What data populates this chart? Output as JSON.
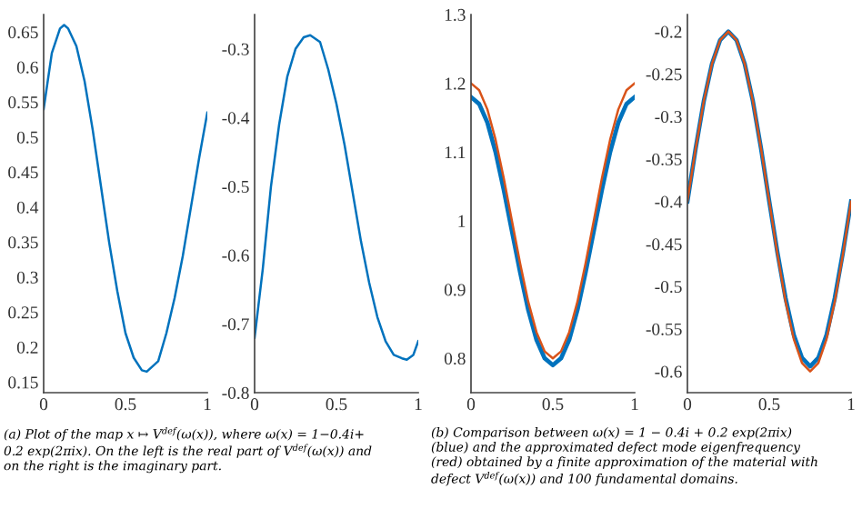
{
  "chart_data": [
    {
      "type": "line",
      "x": [
        0,
        0.05,
        0.1,
        0.125,
        0.15,
        0.2,
        0.25,
        0.3,
        0.35,
        0.4,
        0.45,
        0.5,
        0.55,
        0.6,
        0.63,
        0.7,
        0.75,
        0.8,
        0.85,
        0.9,
        0.95,
        1.0
      ],
      "series": [
        {
          "color": "#0072bd",
          "values": [
            0.54,
            0.62,
            0.655,
            0.66,
            0.655,
            0.63,
            0.58,
            0.51,
            0.43,
            0.35,
            0.28,
            0.22,
            0.185,
            0.167,
            0.165,
            0.18,
            0.22,
            0.27,
            0.33,
            0.4,
            0.47,
            0.535
          ]
        }
      ],
      "xlim": [
        0,
        1
      ],
      "xticks": [
        0,
        0.5,
        1
      ],
      "ylim": [
        0.135,
        0.675
      ],
      "yticks": [
        0.15,
        0.2,
        0.25,
        0.3,
        0.35,
        0.4,
        0.45,
        0.5,
        0.55,
        0.6,
        0.65
      ],
      "grid": false,
      "annotations": [
        "(a) Plot of the map x ↦ V$^{def}$(ω(x)), where ω(x) = 1−0.4i+\n0.2 exp(2πix). On the left is the real part of V$^{def}$(ω(x)) and\non the right is the imaginary part."
      ]
    },
    {
      "type": "line",
      "x": [
        0,
        0.05,
        0.1,
        0.15,
        0.2,
        0.25,
        0.3,
        0.34,
        0.4,
        0.45,
        0.5,
        0.55,
        0.6,
        0.65,
        0.7,
        0.75,
        0.8,
        0.85,
        0.9,
        0.93,
        0.97,
        1.0
      ],
      "series": [
        {
          "color": "#0072bd",
          "values": [
            -0.72,
            -0.62,
            -0.5,
            -0.41,
            -0.34,
            -0.3,
            -0.283,
            -0.28,
            -0.29,
            -0.33,
            -0.38,
            -0.44,
            -0.51,
            -0.58,
            -0.64,
            -0.69,
            -0.725,
            -0.745,
            -0.75,
            -0.752,
            -0.745,
            -0.725
          ]
        }
      ],
      "xlim": [
        0,
        1
      ],
      "xticks": [
        0,
        0.5,
        1
      ],
      "ylim": [
        -0.8,
        -0.25
      ],
      "yticks": [
        -0.8,
        -0.7,
        -0.6,
        -0.5,
        -0.4,
        -0.3
      ],
      "grid": false
    },
    {
      "type": "line",
      "x": [
        0,
        0.05,
        0.1,
        0.15,
        0.2,
        0.25,
        0.3,
        0.35,
        0.4,
        0.45,
        0.5,
        0.55,
        0.6,
        0.65,
        0.7,
        0.75,
        0.8,
        0.85,
        0.9,
        0.95,
        1.0
      ],
      "series": [
        {
          "color": "#0072bd",
          "values": [
            1.18,
            1.17,
            1.143,
            1.1,
            1.045,
            0.985,
            0.925,
            0.87,
            0.827,
            0.8,
            0.79,
            0.8,
            0.827,
            0.87,
            0.925,
            0.985,
            1.045,
            1.1,
            1.143,
            1.17,
            1.18
          ]
        },
        {
          "color": "#d95319",
          "values": [
            1.2,
            1.19,
            1.162,
            1.118,
            1.062,
            1.0,
            0.938,
            0.882,
            0.838,
            0.81,
            0.8,
            0.81,
            0.838,
            0.882,
            0.938,
            1.0,
            1.062,
            1.118,
            1.162,
            1.19,
            1.2
          ]
        }
      ],
      "xlim": [
        0,
        1
      ],
      "xticks": [
        0,
        0.5,
        1
      ],
      "ylim": [
        0.75,
        1.3
      ],
      "yticks": [
        0.8,
        0.9,
        1,
        1.1,
        1.2,
        1.3
      ],
      "grid": false,
      "annotations": [
        "(b) Comparison between ω(x) = 1 − 0.4i + 0.2 exp(2πix)\n(blue) and the approximated defect mode eigenfrequency\n(red) obtained by a finite approximation of the material with\ndefect V$^{def}$(ω(x)) and 100 fundamental domains."
      ]
    },
    {
      "type": "line",
      "x": [
        0,
        0.05,
        0.1,
        0.15,
        0.2,
        0.25,
        0.3,
        0.35,
        0.4,
        0.45,
        0.5,
        0.55,
        0.6,
        0.65,
        0.7,
        0.75,
        0.8,
        0.85,
        0.9,
        0.95,
        1.0
      ],
      "series": [
        {
          "color": "#0072bd",
          "values": [
            -0.4,
            -0.338,
            -0.282,
            -0.238,
            -0.21,
            -0.2,
            -0.21,
            -0.238,
            -0.282,
            -0.338,
            -0.4,
            -0.46,
            -0.514,
            -0.557,
            -0.584,
            -0.594,
            -0.584,
            -0.557,
            -0.514,
            -0.46,
            -0.4
          ]
        },
        {
          "color": "#d95319",
          "values": [
            -0.4,
            -0.338,
            -0.282,
            -0.238,
            -0.21,
            -0.2,
            -0.21,
            -0.238,
            -0.282,
            -0.338,
            -0.4,
            -0.462,
            -0.518,
            -0.562,
            -0.59,
            -0.6,
            -0.59,
            -0.562,
            -0.518,
            -0.462,
            -0.4
          ]
        }
      ],
      "xlim": [
        0,
        1
      ],
      "xticks": [
        0,
        0.5,
        1
      ],
      "ylim": [
        -0.625,
        -0.18
      ],
      "yticks": [
        -0.6,
        -0.55,
        -0.5,
        -0.45,
        -0.4,
        -0.35,
        -0.3,
        -0.25,
        -0.2
      ],
      "grid": false
    }
  ]
}
